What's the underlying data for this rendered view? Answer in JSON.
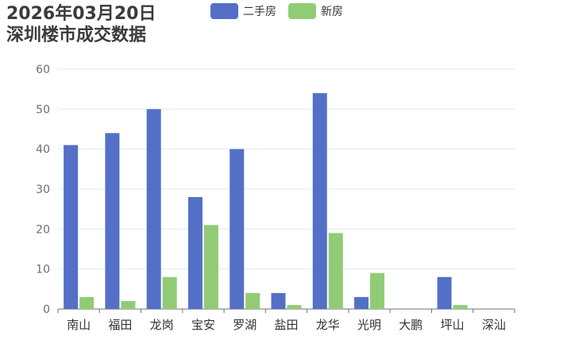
{
  "title": {
    "line1": "2026年03月20日",
    "line2": "深圳楼市成交数据"
  },
  "colors": {
    "second_hand": "#5470c6",
    "new_home": "#91cc75",
    "grid": "#e6e8ee",
    "axis": "#6e7079"
  },
  "chart_data": {
    "type": "bar",
    "categories": [
      "南山",
      "福田",
      "龙岗",
      "宝安",
      "罗湖",
      "盐田",
      "龙华",
      "光明",
      "大鹏",
      "坪山",
      "深汕"
    ],
    "series": [
      {
        "name": "二手房",
        "values": [
          41,
          44,
          50,
          28,
          40,
          4,
          54,
          3,
          0,
          8,
          0
        ]
      },
      {
        "name": "新房",
        "values": [
          3,
          2,
          8,
          21,
          4,
          1,
          19,
          9,
          0,
          1,
          0
        ]
      }
    ],
    "ylim": [
      0,
      60
    ],
    "yticks": [
      0,
      10,
      20,
      30,
      40,
      50,
      60
    ],
    "grid": true,
    "legend_position": "top"
  }
}
